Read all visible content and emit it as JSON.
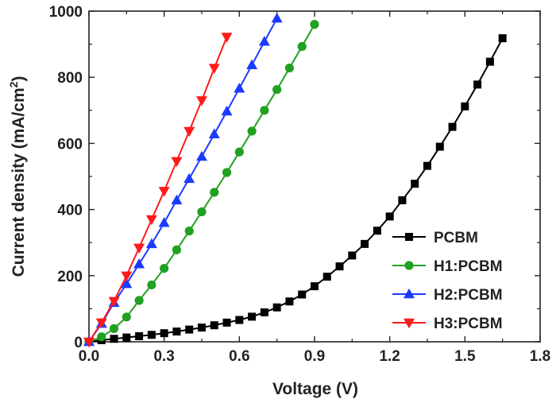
{
  "chart_data": {
    "type": "line",
    "xlabel": "Voltage (V)",
    "ylabel_main": "Current density (mA/cm",
    "ylabel_sup": "2",
    "ylabel_close": ")",
    "xlim": [
      0.0,
      1.8
    ],
    "ylim": [
      0,
      1000
    ],
    "xticks": [
      "0.0",
      "0.3",
      "0.6",
      "0.9",
      "1.2",
      "1.5",
      "1.8"
    ],
    "yticks": [
      "0",
      "200",
      "400",
      "600",
      "800",
      "1000"
    ],
    "grid": false,
    "legend_position": "bottom-right",
    "series": [
      {
        "name": "PCBM",
        "color": "#000000",
        "marker": "square",
        "x": [
          0.0,
          0.05,
          0.1,
          0.15,
          0.2,
          0.25,
          0.3,
          0.35,
          0.4,
          0.45,
          0.5,
          0.55,
          0.6,
          0.65,
          0.7,
          0.75,
          0.8,
          0.85,
          0.9,
          0.95,
          1.0,
          1.05,
          1.1,
          1.15,
          1.2,
          1.25,
          1.3,
          1.35,
          1.4,
          1.45,
          1.5,
          1.55,
          1.6,
          1.65
        ],
        "y": [
          0,
          5,
          9,
          13,
          17,
          21,
          26,
          31,
          37,
          43,
          50,
          58,
          66,
          76,
          89,
          104,
          122,
          143,
          168,
          197,
          228,
          261,
          296,
          336,
          379,
          428,
          478,
          532,
          590,
          650,
          712,
          778,
          847,
          918
        ]
      },
      {
        "name": "H1:PCBM",
        "color": "#22a022",
        "marker": "circle",
        "x": [
          0.0,
          0.05,
          0.1,
          0.15,
          0.2,
          0.25,
          0.3,
          0.35,
          0.4,
          0.45,
          0.5,
          0.55,
          0.6,
          0.65,
          0.7,
          0.75,
          0.8,
          0.85,
          0.9
        ],
        "y": [
          0,
          15,
          40,
          75,
          125,
          172,
          222,
          278,
          335,
          393,
          452,
          512,
          574,
          637,
          700,
          763,
          828,
          893,
          960
        ]
      },
      {
        "name": "H2:PCBM",
        "color": "#1c3aff",
        "marker": "triangle-up",
        "x": [
          0.0,
          0.05,
          0.1,
          0.15,
          0.2,
          0.25,
          0.3,
          0.35,
          0.4,
          0.45,
          0.5,
          0.55,
          0.6,
          0.65,
          0.7,
          0.75
        ],
        "y": [
          0,
          55,
          118,
          175,
          235,
          296,
          360,
          428,
          493,
          560,
          628,
          697,
          766,
          837,
          908,
          978
        ]
      },
      {
        "name": "H3:PCBM",
        "color": "#ff1a1a",
        "marker": "triangle-down",
        "x": [
          0.0,
          0.05,
          0.1,
          0.15,
          0.2,
          0.25,
          0.3,
          0.35,
          0.4,
          0.45,
          0.5,
          0.55
        ],
        "y": [
          0,
          58,
          123,
          200,
          284,
          370,
          456,
          546,
          637,
          730,
          828,
          922
        ]
      }
    ]
  }
}
